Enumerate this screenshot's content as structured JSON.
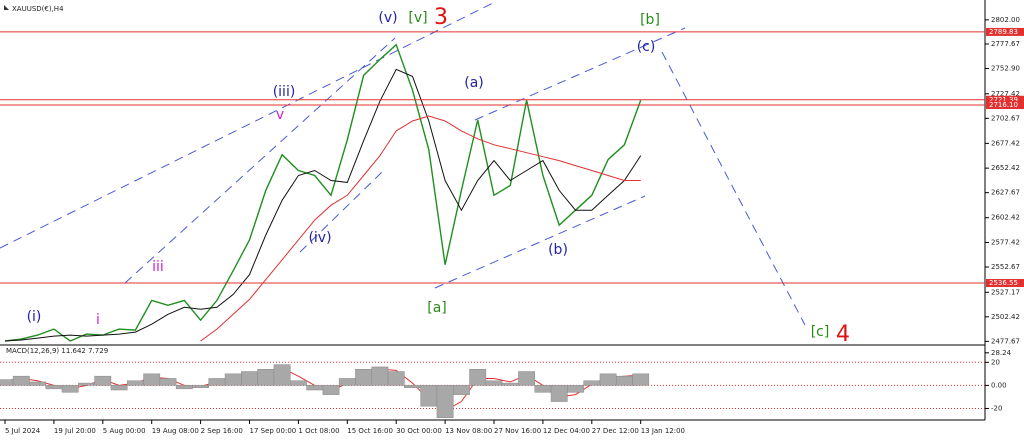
{
  "chart_data": [
    {
      "type": "line",
      "title": "XAUUSD(€),H4",
      "categories": [
        "5 Jul 2024",
        null,
        null,
        "19 Jul 20:00",
        null,
        null,
        "5 Aug 00:00",
        null,
        null,
        "19 Aug 08:00",
        null,
        null,
        "2 Sep 16:00",
        null,
        null,
        "17 Sep 00:00",
        null,
        null,
        "1 Oct 08:00",
        null,
        null,
        "15 Oct 16:00",
        null,
        null,
        "30 Oct 00:00",
        null,
        null,
        "13 Nov 08:00",
        null,
        null,
        "27 Nov 16:00",
        null,
        null,
        "12 Dec 04:00",
        null,
        null,
        "27 Dec 12:00",
        null,
        null,
        "13 Jan 12:00"
      ],
      "series": [
        {
          "color": "#1f8f1f",
          "values": [
            2478,
            2480,
            2484,
            2490,
            2478,
            2485,
            2484,
            2490,
            2489,
            2519,
            2514,
            2519,
            2499,
            2519,
            2549,
            2580,
            2630,
            2666,
            2650,
            2645,
            2625,
            2681,
            2746,
            2762,
            2777,
            2731,
            2671,
            2555,
            2630,
            2701,
            2625,
            2635,
            2721,
            2645,
            2595,
            2610,
            2625,
            2661,
            2676,
            2721
          ]
        },
        {
          "color": "#111111",
          "values": [
            2478,
            2479,
            2481,
            2483,
            2484,
            2483,
            2484,
            2485,
            2487,
            2495,
            2505,
            2512,
            2510,
            2512,
            2525,
            2545,
            2585,
            2620,
            2645,
            2650,
            2640,
            2638,
            2680,
            2720,
            2752,
            2745,
            2700,
            2640,
            2610,
            2640,
            2660,
            2640,
            2650,
            2660,
            2630,
            2610,
            2610,
            2625,
            2640,
            2665
          ]
        },
        {
          "color": "#e03030",
          "values": [
            null,
            null,
            null,
            null,
            null,
            null,
            null,
            null,
            null,
            null,
            null,
            null,
            2478,
            2490,
            2505,
            2520,
            2540,
            2560,
            2580,
            2600,
            2615,
            2625,
            2645,
            2665,
            2690,
            2700,
            2705,
            2700,
            2690,
            2682,
            2676,
            2672,
            2668,
            2664,
            2660,
            2655,
            2650,
            2645,
            2640,
            2640
          ]
        }
      ],
      "ylim": [
        2474,
        2817
      ],
      "yticks": [
        {
          "value": 2802,
          "label": "2802.00"
        },
        2777.67,
        {
          "value": 2752.9,
          "label": "2752.90"
        },
        2727.42,
        2702.67,
        2677.42,
        2652.42,
        2627.67,
        2602.42,
        2577.42,
        2552.67,
        2527.17,
        2502.42,
        2477.67
      ],
      "hline_color": "#e03030",
      "hlines": [
        {
          "value": 2789.83,
          "label": "2789.83"
        },
        {
          "value": 2721.39,
          "label": "2721.39"
        },
        {
          "value": 2716.1,
          "label": "2716.10"
        },
        {
          "value": 2536.55,
          "label": "2536.55"
        }
      ],
      "annotations": [
        "(i)",
        "i",
        "iii",
        "(iii)",
        "v",
        "(iv)",
        "(v)",
        "[v]",
        "3",
        "[a]",
        "(a)",
        "(b)",
        "(c)",
        "[b]",
        "[c]",
        "4"
      ]
    },
    {
      "type": "macd",
      "title": "MACD(12,26,9) 11.642 7.729",
      "histogram": {
        "color": "#a8a8a8",
        "values": [
          5,
          8,
          3,
          -3,
          -6,
          2,
          8,
          -4,
          4,
          10,
          6,
          -3,
          -2,
          6,
          10,
          12,
          14,
          18,
          4,
          -4,
          -8,
          6,
          14,
          16,
          12,
          -2,
          -18,
          -28,
          -8,
          14,
          4,
          2,
          12,
          -6,
          -14,
          -6,
          4,
          10,
          8,
          10
        ]
      },
      "signal": {
        "color": "#e03030",
        "values": [
          4,
          6,
          4,
          0,
          -3,
          0,
          5,
          0,
          2,
          7,
          6,
          0,
          -1,
          3,
          8,
          10,
          12,
          15,
          8,
          0,
          -5,
          2,
          10,
          14,
          13,
          2,
          -12,
          -22,
          -14,
          6,
          6,
          3,
          9,
          0,
          -10,
          -8,
          1,
          7,
          8,
          9
        ]
      },
      "ylim": [
        -30,
        35
      ],
      "yticks": [
        28.24,
        20,
        {
          "value": 0,
          "label": "0.00"
        },
        -20
      ],
      "levels": [
        20,
        0,
        -20
      ]
    }
  ]
}
